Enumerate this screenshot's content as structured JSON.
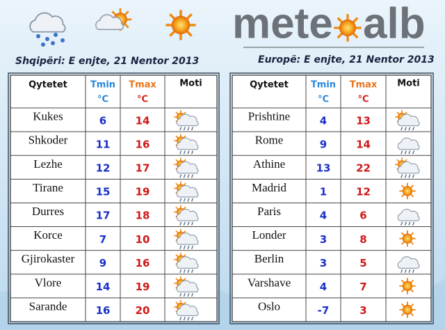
{
  "logo": {
    "left": "mete",
    "right": "alb"
  },
  "headers": {
    "city": "Qytetet",
    "tmin": "Tmin",
    "tmin_unit": "°C",
    "tmax": "Tmax",
    "tmax_unit": "°C",
    "moti": "Moti"
  },
  "left": {
    "title": "Shqipëri: E enjte, 21 Nentor 2013",
    "rows": [
      {
        "city": "Kukes",
        "tmin": 6,
        "tmax": 14
      },
      {
        "city": "Shkoder",
        "tmin": 11,
        "tmax": 16
      },
      {
        "city": "Lezhe",
        "tmin": 12,
        "tmax": 17
      },
      {
        "city": "Tirane",
        "tmin": 15,
        "tmax": 19
      },
      {
        "city": "Durres",
        "tmin": 17,
        "tmax": 18
      },
      {
        "city": "Korce",
        "tmin": 7,
        "tmax": 10
      },
      {
        "city": "Gjirokaster",
        "tmin": 9,
        "tmax": 16
      },
      {
        "city": "Vlore",
        "tmin": 14,
        "tmax": 19
      },
      {
        "city": "Sarande",
        "tmin": 16,
        "tmax": 20
      }
    ]
  },
  "right": {
    "title": "Europë: E enjte, 21 Nentor 2013",
    "rows": [
      {
        "city": "Prishtine",
        "tmin": 4,
        "tmax": 13
      },
      {
        "city": "Rome",
        "tmin": 9,
        "tmax": 14
      },
      {
        "city": "Athine",
        "tmin": 13,
        "tmax": 22
      },
      {
        "city": "Madrid",
        "tmin": 1,
        "tmax": 12
      },
      {
        "city": "Paris",
        "tmin": 4,
        "tmax": 6
      },
      {
        "city": "Londer",
        "tmin": 3,
        "tmax": 8
      },
      {
        "city": "Berlin",
        "tmin": 3,
        "tmax": 5
      },
      {
        "city": "Varshave",
        "tmin": 4,
        "tmax": 7
      },
      {
        "city": "Oslo",
        "tmin": -7,
        "tmax": 3
      }
    ]
  }
}
